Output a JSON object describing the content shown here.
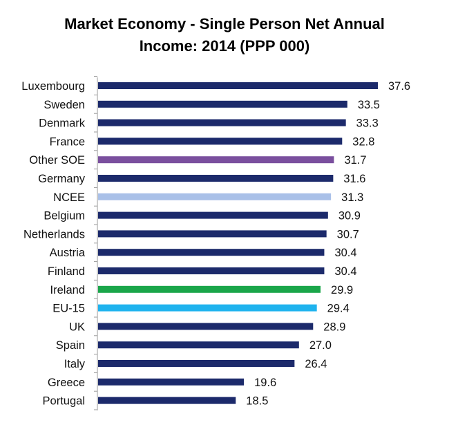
{
  "chart_data": {
    "type": "bar",
    "orientation": "horizontal",
    "title_lines": [
      "Market Economy - Single Person Net Annual",
      "Income:  2014 (PPP 000)"
    ],
    "categories": [
      "Luxembourg",
      "Sweden",
      "Denmark",
      "France",
      "Other SOE",
      "Germany",
      "NCEE",
      "Belgium",
      "Netherlands",
      "Austria",
      "Finland",
      "Ireland",
      "EU-15",
      "UK",
      "Spain",
      "Italy",
      "Greece",
      "Portugal"
    ],
    "values": [
      37.6,
      33.5,
      33.3,
      32.8,
      31.7,
      31.6,
      31.3,
      30.9,
      30.7,
      30.4,
      30.4,
      29.9,
      29.4,
      28.9,
      27.0,
      26.4,
      19.6,
      18.5
    ],
    "value_labels": [
      "37.6",
      "33.5",
      "33.3",
      "32.8",
      "31.7",
      "31.6",
      "31.3",
      "30.9",
      "30.7",
      "30.4",
      "30.4",
      "29.9",
      "29.4",
      "28.9",
      "27.0",
      "26.4",
      "19.6",
      "18.5"
    ],
    "colors": [
      "#1c2a6b",
      "#1c2a6b",
      "#1c2a6b",
      "#1c2a6b",
      "#7a4f9e",
      "#1c2a6b",
      "#a9c0e8",
      "#1c2a6b",
      "#1c2a6b",
      "#1c2a6b",
      "#1c2a6b",
      "#1aa64a",
      "#1fb3ee",
      "#1c2a6b",
      "#1c2a6b",
      "#1c2a6b",
      "#1c2a6b",
      "#1c2a6b"
    ],
    "xlim": [
      0,
      40
    ],
    "xlabel": "",
    "ylabel": "",
    "grid": false,
    "legend": "none"
  }
}
